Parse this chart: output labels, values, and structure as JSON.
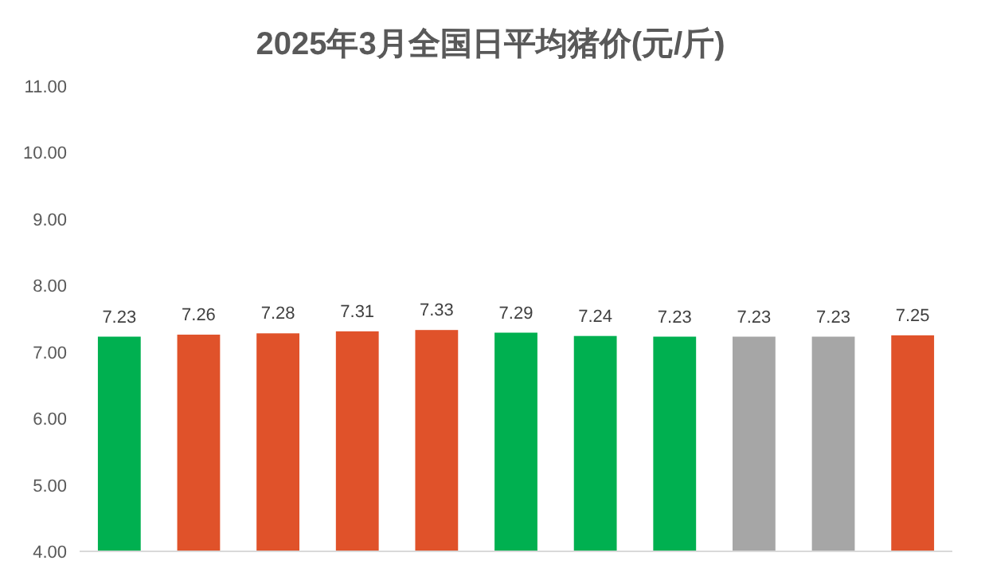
{
  "chart_data": {
    "type": "bar",
    "title": "2025年3月全国日平均猪价(元/斤)",
    "categories": [
      null,
      null,
      null,
      null,
      null,
      null,
      null,
      null,
      null,
      null,
      null
    ],
    "values": [
      7.23,
      7.26,
      7.28,
      7.31,
      7.33,
      7.29,
      7.24,
      7.23,
      7.23,
      7.23,
      7.25
    ],
    "colors": [
      "#00b050",
      "#e0522a",
      "#e0522a",
      "#e0522a",
      "#e0522a",
      "#00b050",
      "#00b050",
      "#00b050",
      "#a6a6a6",
      "#a6a6a6",
      "#e0522a"
    ],
    "ylim": [
      4,
      11
    ],
    "yticks": [
      {
        "value": 4,
        "label": "4.00"
      },
      {
        "value": 5,
        "label": "5.00"
      },
      {
        "value": 6,
        "label": "6.00"
      },
      {
        "value": 7,
        "label": "7.00"
      },
      {
        "value": 8,
        "label": "8.00"
      },
      {
        "value": 9,
        "label": "9.00"
      },
      {
        "value": 10,
        "label": "10.00"
      },
      {
        "value": 11,
        "label": "11.00"
      }
    ],
    "data_labels": true
  }
}
